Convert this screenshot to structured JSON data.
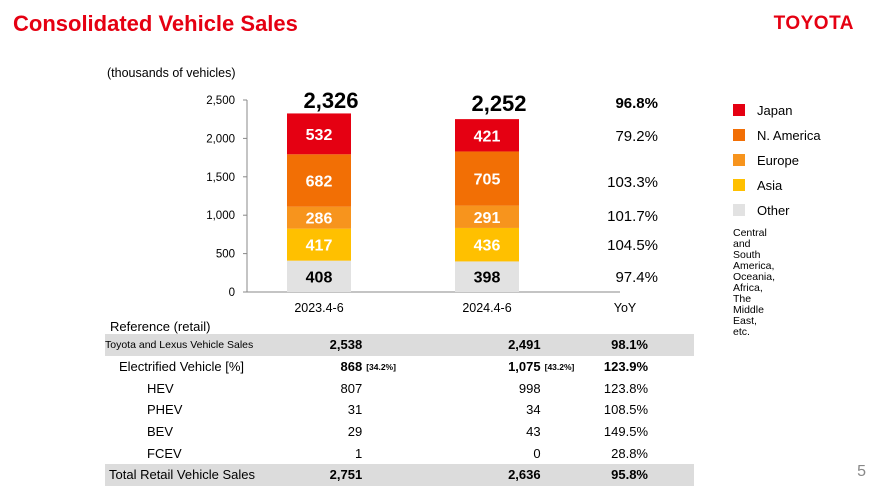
{
  "header": {
    "title": "Consolidated Vehicle Sales",
    "logo": "TOYOTA"
  },
  "units": "(thousands of vehicles)",
  "chart_data": {
    "type": "bar",
    "stacked": true,
    "categories": [
      "2023.4-6",
      "2024.4-6"
    ],
    "series": [
      {
        "name": "Other",
        "color": "#e2e2e2",
        "values": [
          408,
          398
        ]
      },
      {
        "name": "Asia",
        "color": "#ffc000",
        "values": [
          417,
          436
        ]
      },
      {
        "name": "Europe",
        "color": "#f7941d",
        "values": [
          286,
          291
        ]
      },
      {
        "name": "N. America",
        "color": "#f26f05",
        "values": [
          682,
          705
        ]
      },
      {
        "name": "Japan",
        "color": "#e50012",
        "values": [
          532,
          421
        ]
      }
    ],
    "totals": [
      "2,326",
      "2,252"
    ],
    "yoy_header": "YoY",
    "yoy_total": "96.8%",
    "yoy": [
      "97.4%",
      "104.5%",
      "101.7%",
      "103.3%",
      "79.2%"
    ],
    "yticks": [
      "0",
      "500",
      "1,000",
      "1,500",
      "2,000",
      "2,500"
    ],
    "ylim": [
      0,
      2500
    ]
  },
  "legend": {
    "items": [
      {
        "label": "Japan",
        "color": "#e50012"
      },
      {
        "label": "N. America",
        "color": "#f26f05"
      },
      {
        "label": "Europe",
        "color": "#f7941d"
      },
      {
        "label": "Asia",
        "color": "#ffc000"
      },
      {
        "label": "Other",
        "color": "#e2e2e2"
      }
    ],
    "note": "Central and\nSouth America,\nOceania,\nAfrica,\nThe Middle East, etc."
  },
  "reference": {
    "title": "Reference (retail)",
    "rows": [
      {
        "label": "Toyota and Lexus Vehicle Sales",
        "v1": "2,538",
        "p1": "",
        "v2": "2,491",
        "p2": "",
        "yoy": "98.1%",
        "bold": true,
        "shaded": true,
        "small": true,
        "indent": 0
      },
      {
        "label": "Electrified Vehicle [%]",
        "v1": "868",
        "p1": "[34.2%]",
        "v2": "1,075",
        "p2": "[43.2%]",
        "yoy": "123.9%",
        "bold": true,
        "shaded": false,
        "indent": 14
      },
      {
        "label": "HEV",
        "v1": "807",
        "p1": "",
        "v2": "998",
        "p2": "",
        "yoy": "123.8%",
        "bold": false,
        "shaded": false,
        "indent": 42
      },
      {
        "label": "PHEV",
        "v1": "31",
        "p1": "",
        "v2": "34",
        "p2": "",
        "yoy": "108.5%",
        "bold": false,
        "shaded": false,
        "indent": 42
      },
      {
        "label": "BEV",
        "v1": "29",
        "p1": "",
        "v2": "43",
        "p2": "",
        "yoy": "149.5%",
        "bold": false,
        "shaded": false,
        "indent": 42
      },
      {
        "label": "FCEV",
        "v1": "1",
        "p1": "",
        "v2": "0",
        "p2": "",
        "yoy": "28.8%",
        "bold": false,
        "shaded": false,
        "indent": 42
      },
      {
        "label": "Total Retail Vehicle Sales",
        "v1": "2,751",
        "p1": "",
        "v2": "2,636",
        "p2": "",
        "yoy": "95.8%",
        "bold": true,
        "shaded": true,
        "indent": 4
      }
    ]
  },
  "page_number": "5"
}
